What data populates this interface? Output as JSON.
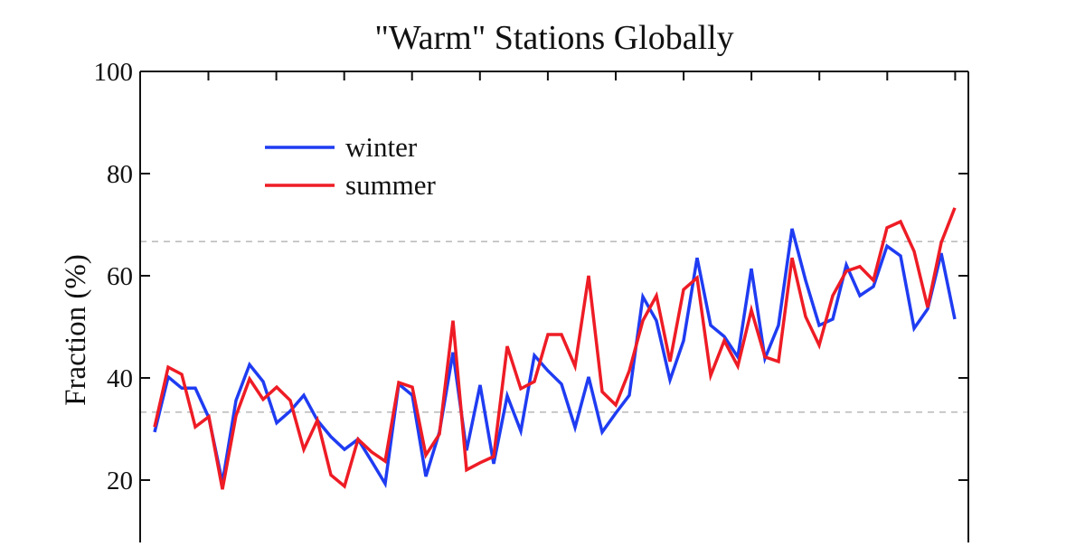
{
  "chart_data": {
    "type": "line",
    "title": "\"Warm\" Stations Globally",
    "xlabel": "",
    "ylabel": "Fraction (%)",
    "ylim": [
      0,
      100
    ],
    "yticks": [
      20,
      40,
      60,
      80,
      100
    ],
    "ytick_labels": [
      "20",
      "40",
      "60",
      "80",
      "100"
    ],
    "grid": false,
    "reference_lines": [
      {
        "value": 66.7,
        "style": "dashed",
        "color": "#aaaaaa"
      },
      {
        "value": 33.3,
        "style": "dashed",
        "color": "#aaaaaa"
      }
    ],
    "legend": {
      "position": "upper left",
      "entries": [
        "winter",
        "summer"
      ]
    },
    "x": [
      0,
      1,
      2,
      3,
      4,
      5,
      6,
      7,
      8,
      9,
      10,
      11,
      12,
      13,
      14,
      15,
      16,
      17,
      18,
      19,
      20,
      21,
      22,
      23,
      24,
      25,
      26,
      27,
      28,
      29,
      30,
      31,
      32,
      33,
      34,
      35,
      36,
      37,
      38,
      39,
      40,
      41,
      42,
      43,
      44,
      45,
      46,
      47,
      48,
      49,
      50,
      51,
      52,
      53,
      54,
      55,
      56,
      57,
      58,
      59
    ],
    "series": [
      {
        "name": "winter",
        "color": "#1f3cf2",
        "values": [
          29.4,
          40.2,
          38.0,
          38.0,
          32.2,
          19.5,
          35.6,
          42.6,
          39.3,
          31.2,
          33.5,
          36.6,
          31.7,
          28.5,
          26.0,
          28.0,
          23.7,
          19.3,
          38.8,
          36.6,
          20.7,
          29.4,
          45.0,
          25.8,
          38.6,
          23.2,
          36.5,
          29.6,
          44.4,
          41.4,
          38.8,
          30.3,
          40.2,
          29.4,
          33.1,
          36.6,
          55.9,
          51.2,
          39.6,
          47.3,
          63.5,
          50.3,
          48.1,
          44.1,
          61.4,
          43.8,
          50.3,
          69.2,
          59.1,
          50.3,
          51.5,
          62.1,
          56.1,
          57.9,
          65.8,
          63.9,
          49.7,
          53.5,
          64.4,
          51.5
        ]
      },
      {
        "name": "summer",
        "color": "#ee1c25",
        "values": [
          30.4,
          42.1,
          40.7,
          30.4,
          32.4,
          18.2,
          32.6,
          39.8,
          35.8,
          38.2,
          35.6,
          26.0,
          31.7,
          21.0,
          18.8,
          28.0,
          25.5,
          23.7,
          39.1,
          38.2,
          24.9,
          29.0,
          51.2,
          22.0,
          23.4,
          24.6,
          46.2,
          37.9,
          39.3,
          48.5,
          48.5,
          42.3,
          60.0,
          37.3,
          34.7,
          41.4,
          51.2,
          56.1,
          43.2,
          57.3,
          59.6,
          40.5,
          47.3,
          42.3,
          53.3,
          44.1,
          43.2,
          63.5,
          52.0,
          46.4,
          56.1,
          60.9,
          61.8,
          59.1,
          69.4,
          70.6,
          64.8,
          53.8,
          66.5,
          73.3
        ]
      }
    ]
  }
}
